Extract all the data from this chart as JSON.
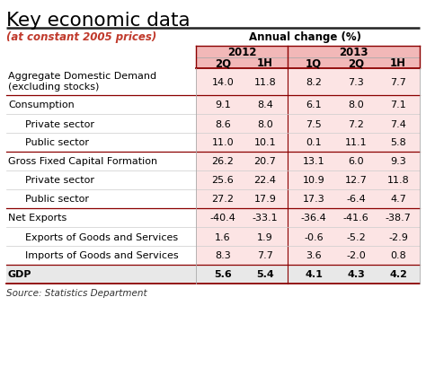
{
  "title": "Key economic data",
  "subtitle": "(at constant 2005 prices)",
  "annual_change_label": "Annual change (%)",
  "source": "Source: Statistics Department",
  "col_headers": [
    "2Q",
    "1H",
    "1Q",
    "2Q",
    "1H"
  ],
  "rows": [
    {
      "label": "Aggregate Domestic Demand\n(excluding stocks)",
      "values": [
        "14.0",
        "11.8",
        "8.2",
        "7.3",
        "7.7"
      ],
      "bold": false,
      "indent": false,
      "group_start": true,
      "double": true
    },
    {
      "label": "Consumption",
      "values": [
        "9.1",
        "8.4",
        "6.1",
        "8.0",
        "7.1"
      ],
      "bold": false,
      "indent": false,
      "group_start": true,
      "double": false
    },
    {
      "label": "  Private sector",
      "values": [
        "8.6",
        "8.0",
        "7.5",
        "7.2",
        "7.4"
      ],
      "bold": false,
      "indent": true,
      "group_start": false,
      "double": false
    },
    {
      "label": "  Public sector",
      "values": [
        "11.0",
        "10.1",
        "0.1",
        "11.1",
        "5.8"
      ],
      "bold": false,
      "indent": true,
      "group_start": false,
      "double": false
    },
    {
      "label": "Gross Fixed Capital Formation",
      "values": [
        "26.2",
        "20.7",
        "13.1",
        "6.0",
        "9.3"
      ],
      "bold": false,
      "indent": false,
      "group_start": true,
      "double": false
    },
    {
      "label": "  Private sector",
      "values": [
        "25.6",
        "22.4",
        "10.9",
        "12.7",
        "11.8"
      ],
      "bold": false,
      "indent": true,
      "group_start": false,
      "double": false
    },
    {
      "label": "  Public sector",
      "values": [
        "27.2",
        "17.9",
        "17.3",
        "-6.4",
        "4.7"
      ],
      "bold": false,
      "indent": true,
      "group_start": false,
      "double": false
    },
    {
      "label": "Net Exports",
      "values": [
        "-40.4",
        "-33.1",
        "-36.4",
        "-41.6",
        "-38.7"
      ],
      "bold": false,
      "indent": false,
      "group_start": true,
      "double": false
    },
    {
      "label": "  Exports of Goods and Services",
      "values": [
        "1.6",
        "1.9",
        "-0.6",
        "-5.2",
        "-2.9"
      ],
      "bold": false,
      "indent": true,
      "group_start": false,
      "double": false
    },
    {
      "label": "  Imports of Goods and Services",
      "values": [
        "8.3",
        "7.7",
        "3.6",
        "-2.0",
        "0.8"
      ],
      "bold": false,
      "indent": true,
      "group_start": false,
      "double": false
    },
    {
      "label": "GDP",
      "values": [
        "5.6",
        "5.4",
        "4.1",
        "4.3",
        "4.2"
      ],
      "bold": true,
      "indent": false,
      "group_start": true,
      "double": false
    }
  ],
  "title_color": "#000000",
  "subtitle_color": "#c0392b",
  "annual_label_color": "#000000",
  "header_bg": "#f2b8b8",
  "row_bg_pink": "#fce4e4",
  "row_bg_white": "#ffffff",
  "row_bg_gdp": "#e8e8e8",
  "dark_red": "#8B0000",
  "mid_red": "#c0392b",
  "text_color": "#000000",
  "source_color": "#333333",
  "fig_w": 4.74,
  "fig_h": 4.1,
  "dpi": 100
}
